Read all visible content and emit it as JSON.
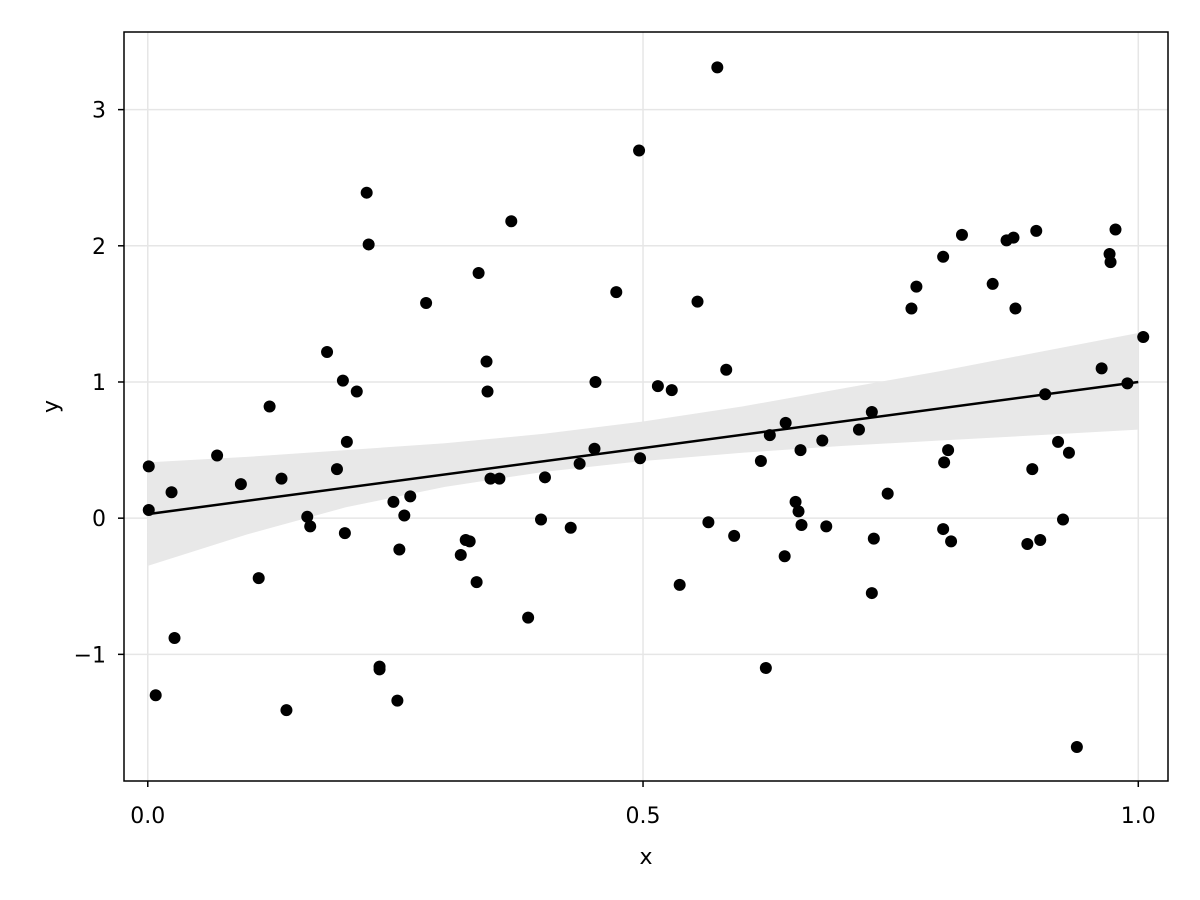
{
  "chart_data": {
    "type": "scatter",
    "title": "",
    "xlabel": "x",
    "ylabel": "y",
    "xlim": [
      -0.024,
      1.03
    ],
    "ylim": [
      -1.93,
      3.57
    ],
    "xticks": [
      0.0,
      0.5,
      1.0
    ],
    "xtick_labels": [
      "0.0",
      "0.5",
      "1.0"
    ],
    "yticks": [
      -1,
      0,
      1,
      2,
      3
    ],
    "ytick_labels": [
      "−1",
      "0",
      "1",
      "2",
      "3"
    ],
    "grid": true,
    "legend": "none",
    "colors": {
      "points": "#000000",
      "fit_line": "#000000",
      "band": "#e8e8e8",
      "grid": "#e6e6e6",
      "frame": "#000000"
    },
    "series": [
      {
        "kind": "scatter",
        "points": [
          {
            "x": 0.001,
            "y": 0.38
          },
          {
            "x": 0.001,
            "y": 0.06
          },
          {
            "x": 0.008,
            "y": -1.3
          },
          {
            "x": 0.024,
            "y": 0.19
          },
          {
            "x": 0.027,
            "y": -0.88
          },
          {
            "x": 0.07,
            "y": 0.46
          },
          {
            "x": 0.094,
            "y": 0.25
          },
          {
            "x": 0.112,
            "y": -0.44
          },
          {
            "x": 0.123,
            "y": 0.82
          },
          {
            "x": 0.135,
            "y": 0.29
          },
          {
            "x": 0.14,
            "y": -1.41
          },
          {
            "x": 0.161,
            "y": 0.01
          },
          {
            "x": 0.164,
            "y": -0.06
          },
          {
            "x": 0.181,
            "y": 1.22
          },
          {
            "x": 0.191,
            "y": 0.36
          },
          {
            "x": 0.197,
            "y": 1.01
          },
          {
            "x": 0.199,
            "y": -0.11
          },
          {
            "x": 0.201,
            "y": 0.56
          },
          {
            "x": 0.211,
            "y": 0.93
          },
          {
            "x": 0.221,
            "y": 2.39
          },
          {
            "x": 0.223,
            "y": 2.01
          },
          {
            "x": 0.234,
            "y": -1.09
          },
          {
            "x": 0.234,
            "y": -1.11
          },
          {
            "x": 0.248,
            "y": 0.12
          },
          {
            "x": 0.252,
            "y": -1.34
          },
          {
            "x": 0.254,
            "y": -0.23
          },
          {
            "x": 0.259,
            "y": 0.02
          },
          {
            "x": 0.265,
            "y": 0.16
          },
          {
            "x": 0.281,
            "y": 1.58
          },
          {
            "x": 0.316,
            "y": -0.27
          },
          {
            "x": 0.321,
            "y": -0.16
          },
          {
            "x": 0.325,
            "y": -0.17
          },
          {
            "x": 0.332,
            "y": -0.47
          },
          {
            "x": 0.334,
            "y": 1.8
          },
          {
            "x": 0.342,
            "y": 1.15
          },
          {
            "x": 0.343,
            "y": 0.93
          },
          {
            "x": 0.346,
            "y": 0.29
          },
          {
            "x": 0.355,
            "y": 0.29
          },
          {
            "x": 0.367,
            "y": 2.18
          },
          {
            "x": 0.384,
            "y": -0.73
          },
          {
            "x": 0.397,
            "y": -0.01
          },
          {
            "x": 0.401,
            "y": 0.3
          },
          {
            "x": 0.427,
            "y": -0.07
          },
          {
            "x": 0.436,
            "y": 0.4
          },
          {
            "x": 0.451,
            "y": 0.51
          },
          {
            "x": 0.452,
            "y": 1.0
          },
          {
            "x": 0.473,
            "y": 1.66
          },
          {
            "x": 0.496,
            "y": 2.7
          },
          {
            "x": 0.497,
            "y": 0.44
          },
          {
            "x": 0.515,
            "y": 0.97
          },
          {
            "x": 0.529,
            "y": 0.94
          },
          {
            "x": 0.537,
            "y": -0.49
          },
          {
            "x": 0.555,
            "y": 1.59
          },
          {
            "x": 0.566,
            "y": -0.03
          },
          {
            "x": 0.575,
            "y": 3.31
          },
          {
            "x": 0.584,
            "y": 1.09
          },
          {
            "x": 0.592,
            "y": -0.13
          },
          {
            "x": 0.619,
            "y": 0.42
          },
          {
            "x": 0.624,
            "y": -1.1
          },
          {
            "x": 0.628,
            "y": 0.61
          },
          {
            "x": 0.643,
            "y": -0.28
          },
          {
            "x": 0.644,
            "y": 0.7
          },
          {
            "x": 0.654,
            "y": 0.12
          },
          {
            "x": 0.657,
            "y": 0.05
          },
          {
            "x": 0.659,
            "y": 0.5
          },
          {
            "x": 0.66,
            "y": -0.05
          },
          {
            "x": 0.681,
            "y": 0.57
          },
          {
            "x": 0.685,
            "y": -0.06
          },
          {
            "x": 0.718,
            "y": 0.65
          },
          {
            "x": 0.731,
            "y": 0.78
          },
          {
            "x": 0.731,
            "y": -0.55
          },
          {
            "x": 0.733,
            "y": -0.15
          },
          {
            "x": 0.747,
            "y": 0.18
          },
          {
            "x": 0.771,
            "y": 1.54
          },
          {
            "x": 0.776,
            "y": 1.7
          },
          {
            "x": 0.803,
            "y": 1.92
          },
          {
            "x": 0.803,
            "y": -0.08
          },
          {
            "x": 0.804,
            "y": 0.41
          },
          {
            "x": 0.808,
            "y": 0.5
          },
          {
            "x": 0.811,
            "y": -0.17
          },
          {
            "x": 0.822,
            "y": 2.08
          },
          {
            "x": 0.853,
            "y": 1.72
          },
          {
            "x": 0.867,
            "y": 2.04
          },
          {
            "x": 0.874,
            "y": 2.06
          },
          {
            "x": 0.876,
            "y": 1.54
          },
          {
            "x": 0.888,
            "y": -0.19
          },
          {
            "x": 0.893,
            "y": 0.36
          },
          {
            "x": 0.897,
            "y": 2.11
          },
          {
            "x": 0.901,
            "y": -0.16
          },
          {
            "x": 0.906,
            "y": 0.91
          },
          {
            "x": 0.919,
            "y": 0.56
          },
          {
            "x": 0.924,
            "y": -0.01
          },
          {
            "x": 0.93,
            "y": 0.48
          },
          {
            "x": 0.938,
            "y": -1.68
          },
          {
            "x": 0.963,
            "y": 1.1
          },
          {
            "x": 0.971,
            "y": 1.94
          },
          {
            "x": 0.972,
            "y": 1.88
          },
          {
            "x": 0.977,
            "y": 2.12
          },
          {
            "x": 0.989,
            "y": 0.99
          },
          {
            "x": 1.005,
            "y": 1.33
          }
        ]
      },
      {
        "kind": "line",
        "points": [
          {
            "x": 0.0,
            "y": 0.03
          },
          {
            "x": 1.0,
            "y": 1.0
          }
        ]
      },
      {
        "kind": "band",
        "points": [
          {
            "x": 0.0,
            "lower": -0.35,
            "upper": 0.41
          },
          {
            "x": 0.1,
            "lower": -0.12,
            "upper": 0.45
          },
          {
            "x": 0.2,
            "lower": 0.08,
            "upper": 0.5
          },
          {
            "x": 0.3,
            "lower": 0.23,
            "upper": 0.55
          },
          {
            "x": 0.4,
            "lower": 0.34,
            "upper": 0.62
          },
          {
            "x": 0.5,
            "lower": 0.42,
            "upper": 0.71
          },
          {
            "x": 0.6,
            "lower": 0.48,
            "upper": 0.82
          },
          {
            "x": 0.7,
            "lower": 0.53,
            "upper": 0.95
          },
          {
            "x": 0.8,
            "lower": 0.57,
            "upper": 1.08
          },
          {
            "x": 0.9,
            "lower": 0.61,
            "upper": 1.22
          },
          {
            "x": 1.0,
            "lower": 0.65,
            "upper": 1.36
          }
        ]
      }
    ]
  }
}
